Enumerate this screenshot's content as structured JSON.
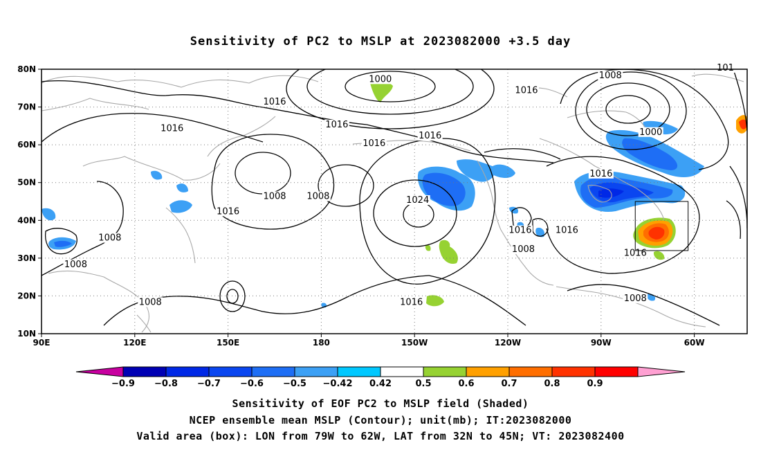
{
  "title": "Sensitivity of PC2 to MSLP at 2023082000 +3.5 day",
  "lat_labels": [
    "80N",
    "70N",
    "60N",
    "50N",
    "40N",
    "30N",
    "20N",
    "10N"
  ],
  "lon_labels": [
    "90E",
    "120E",
    "150E",
    "180",
    "150W",
    "120W",
    "90W",
    "60W"
  ],
  "contour_labels": [
    {
      "text": "1000",
      "lon": -161,
      "lat": 77
    },
    {
      "text": "1016",
      "lon": 165,
      "lat": 71
    },
    {
      "text": "1016",
      "lon": 132,
      "lat": 64
    },
    {
      "text": "1016",
      "lon": -175,
      "lat": 65
    },
    {
      "text": "1016",
      "lon": -163,
      "lat": 60
    },
    {
      "text": "1016",
      "lon": -145,
      "lat": 62
    },
    {
      "text": "1016",
      "lon": -114,
      "lat": 74
    },
    {
      "text": "1008",
      "lon": -87,
      "lat": 78
    },
    {
      "text": "1000",
      "lon": -74,
      "lat": 63
    },
    {
      "text": "1016",
      "lon": -90,
      "lat": 52
    },
    {
      "text": "1024",
      "lon": -149,
      "lat": 45
    },
    {
      "text": "1008",
      "lon": 165,
      "lat": 46
    },
    {
      "text": "1008",
      "lon": -181,
      "lat": 46
    },
    {
      "text": "1016",
      "lon": 150,
      "lat": 42
    },
    {
      "text": "1008",
      "lon": 112,
      "lat": 35
    },
    {
      "text": "1008",
      "lon": 101,
      "lat": 28
    },
    {
      "text": "1008",
      "lon": 125,
      "lat": 18
    },
    {
      "text": "1016",
      "lon": -116,
      "lat": 37
    },
    {
      "text": "1016",
      "lon": -101,
      "lat": 37
    },
    {
      "text": "1008",
      "lon": -115,
      "lat": 32
    },
    {
      "text": "1016",
      "lon": -79,
      "lat": 31
    },
    {
      "text": "1016",
      "lon": -151,
      "lat": 18
    },
    {
      "text": "1008",
      "lon": -79,
      "lat": 19
    },
    {
      "text": "101",
      "lon": -50,
      "lat": 80
    }
  ],
  "valid_box": {
    "lon_west": -79,
    "lon_east": -62,
    "lat_south": 32,
    "lat_north": 45
  },
  "legend": {
    "ticks": [
      "−0.9",
      "−0.8",
      "−0.7",
      "−0.6",
      "−0.5",
      "−0.42",
      "0.42",
      "0.5",
      "0.6",
      "0.7",
      "0.8",
      "0.9"
    ],
    "colors": [
      "#0000b4",
      "#0028e6",
      "#0a46f0",
      "#1e6ef5",
      "#3ca0f5",
      "#00c8ff",
      "#ffffff",
      "#96d232",
      "#ffa000",
      "#ff6e00",
      "#ff3200",
      "#ff0000"
    ],
    "under_color": "#c800a0",
    "over_color": "#ffa0d2"
  },
  "captions": [
    "Sensitivity of EOF PC2 to MSLP field (Shaded)",
    "NCEP ensemble mean MSLP (Contour); unit(mb); IT:2023082000",
    "Valid area (box): LON from 79W to 62W, LAT from 32N to 45N; VT: 2023082400"
  ]
}
